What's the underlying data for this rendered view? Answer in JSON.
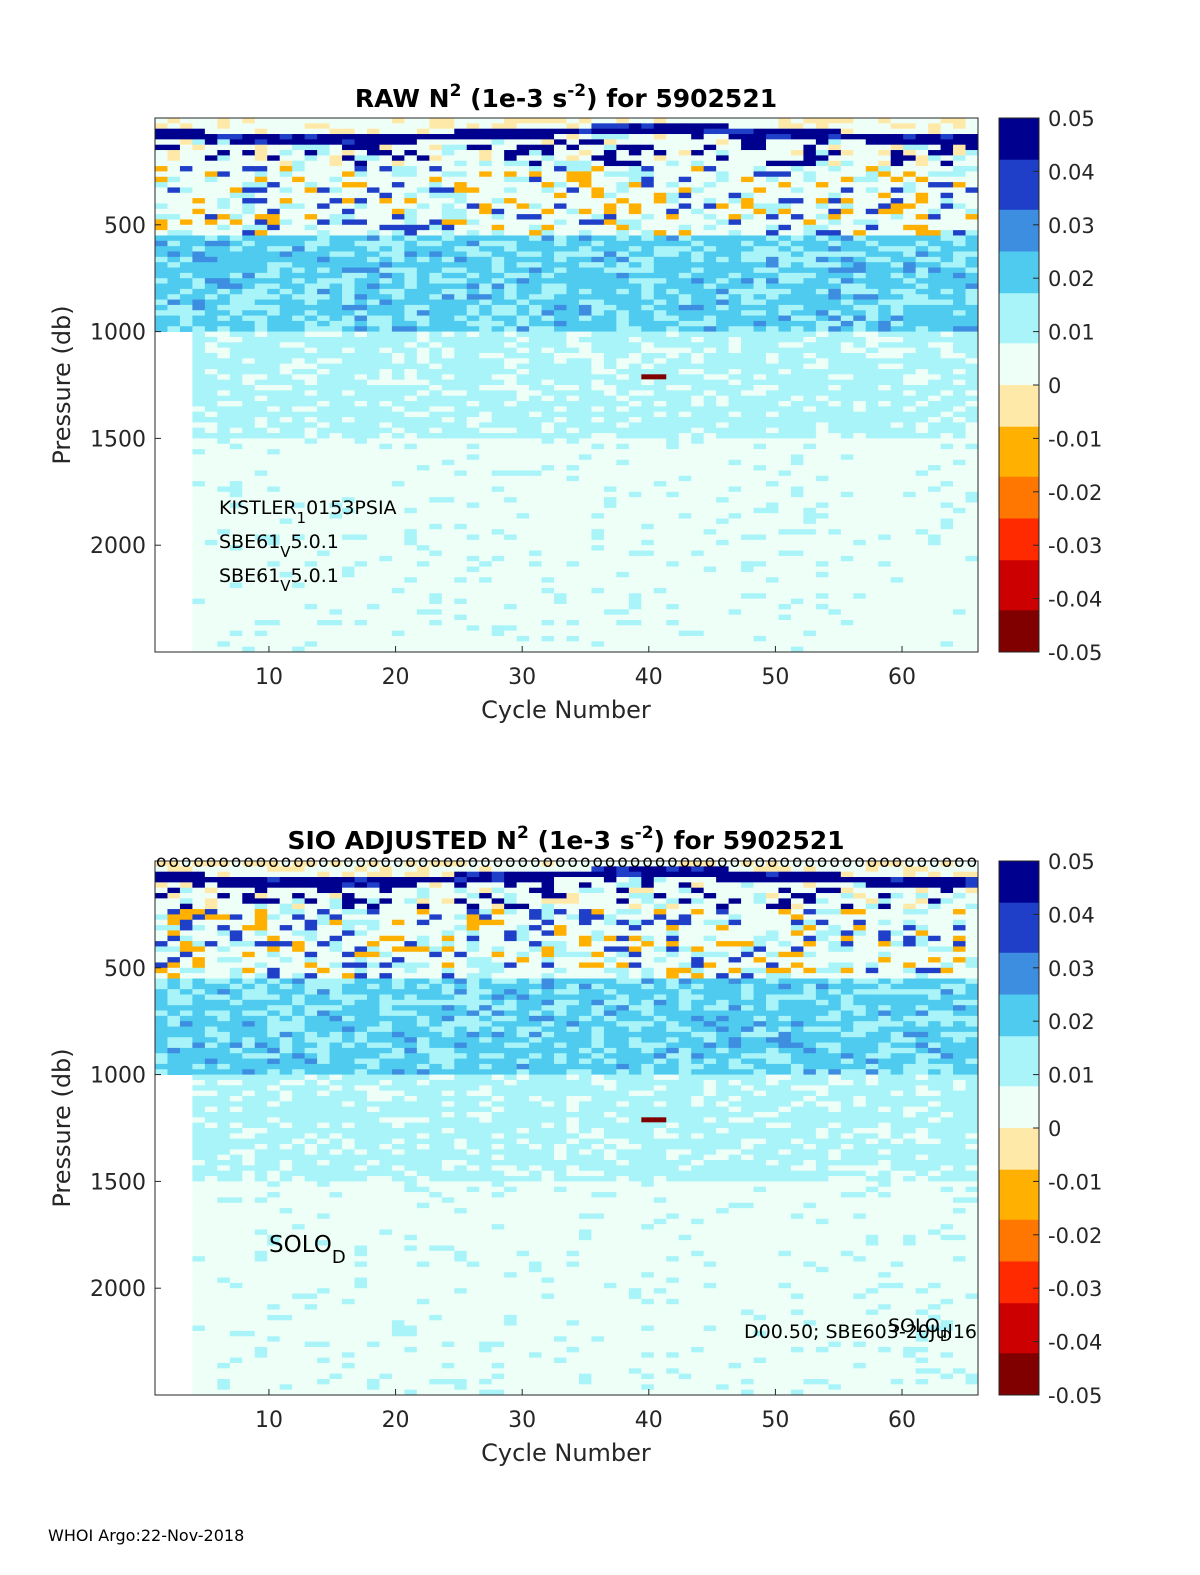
{
  "footer": "WHOI Argo:22-Nov-2018",
  "colormap": [
    "#800000",
    "#cc0000",
    "#ff2a00",
    "#ff7700",
    "#ffb000",
    "#ffe9a8",
    "#eefff8",
    "#a8f4f8",
    "#4fcbef",
    "#3d8de0",
    "#1f3fc8",
    "#00008f"
  ],
  "chart_data": [
    {
      "type": "heatmap",
      "title_parts": {
        "prefix": "RAW N",
        "sup1": "2",
        "mid": " (1e-3 s",
        "sup2": "-2",
        "suffix": ") for 5902521"
      },
      "xlabel": "Cycle Number",
      "ylabel": "Pressure (db)",
      "xlim": [
        1,
        66
      ],
      "ylim": [
        0,
        2500
      ],
      "y_reversed": true,
      "xticks": [
        10,
        20,
        30,
        40,
        50,
        60
      ],
      "yticks": [
        500,
        1000,
        1500,
        2000
      ],
      "clim": [
        -0.05,
        0.05
      ],
      "colorbar_ticks": [
        "0.05",
        "0.04",
        "0.03",
        "0.02",
        "0.01",
        "0",
        "-0.01",
        "-0.02",
        "-0.03",
        "-0.04",
        "-0.05"
      ],
      "first_full_cycle": 4,
      "early_max_pressure": 1000,
      "anomaly": {
        "cycle": 40,
        "pressure": 1210,
        "value": -0.05
      },
      "annotations": [
        {
          "base": "KISTLER",
          "sub": "1",
          "rest": "0153PSIA"
        },
        {
          "base": "SBE61",
          "sub": "V",
          "rest": "5.0.1"
        },
        {
          "base": "SBE61",
          "sub": "V",
          "rest": "5.0.1"
        }
      ]
    },
    {
      "type": "heatmap",
      "title_parts": {
        "prefix": "SIO  ADJUSTED N",
        "sup1": "2",
        "mid": " (1e-3 s",
        "sup2": "-2",
        "suffix": ") for 5902521"
      },
      "xlabel": "Cycle Number",
      "ylabel": "Pressure (db)",
      "xlim": [
        1,
        66
      ],
      "ylim": [
        0,
        2500
      ],
      "y_reversed": true,
      "xticks": [
        10,
        20,
        30,
        40,
        50,
        60
      ],
      "yticks": [
        500,
        1000,
        1500,
        2000
      ],
      "clim": [
        -0.05,
        0.05
      ],
      "colorbar_ticks": [
        "0.05",
        "0.04",
        "0.03",
        "0.02",
        "0.01",
        "0",
        "-0.01",
        "-0.02",
        "-0.03",
        "-0.04",
        "-0.05"
      ],
      "first_full_cycle": 4,
      "early_max_pressure": 1000,
      "anomaly": {
        "cycle": 40,
        "pressure": 1210,
        "value": -0.05
      },
      "qc_marker": "o",
      "annotations": [
        {
          "base": "SOLO",
          "sub": "D",
          "rest": ""
        },
        {
          "text": "D00.50; SBE603-20Jul16"
        },
        {
          "base": "SOLO",
          "sub": "D",
          "rest": ""
        }
      ]
    }
  ]
}
